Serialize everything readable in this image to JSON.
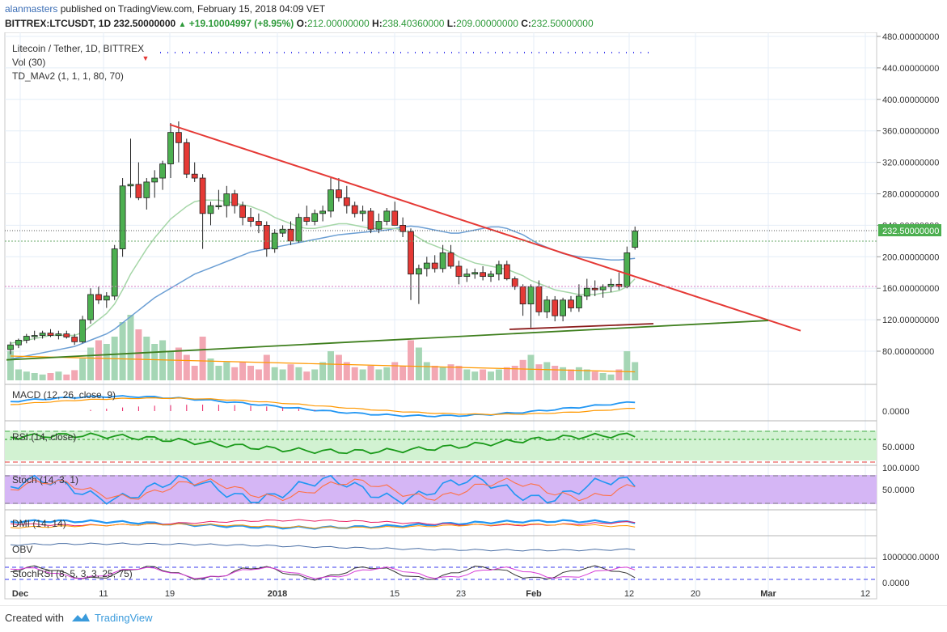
{
  "header": {
    "user": "alanmasters",
    "published": "published on TradingView.com, February 15, 2018 04:09 VET",
    "symbol": "BITTREX:LTCUSDT, 1D",
    "last": "232.50000000",
    "change": "+19.10004997 (+8.95%)",
    "o_label": "O:",
    "o": "212.00000000",
    "h_label": "H:",
    "h": "238.40360000",
    "l_label": "L:",
    "l": "209.00000000",
    "c_label": "C:",
    "c": "232.50000000"
  },
  "legend": {
    "title": "Litecoin / Tether, 1D, BITTREX",
    "vol": "Vol (30)",
    "td": "TD_MAv2 (1, 1, 1, 80, 70)"
  },
  "panes": {
    "macd": "MACD (12, 26, close, 9)",
    "rsi": "RSI (14, close)",
    "stoch": "Stoch (14, 3, 1)",
    "dmi": "DMI (14, 14)",
    "obv": "OBV",
    "stochrsi": "StochRSI (8, 5, 3, 3, 25, 75)"
  },
  "pane_axes": {
    "macd": "0.0000",
    "rsi": "50.0000",
    "stoch_top": "100.0000",
    "stoch_mid": "50.0000",
    "obv": "1000000.0000",
    "stochrsi": "0.0000"
  },
  "footer": {
    "created": "Created with",
    "brand": "TradingView"
  },
  "colors": {
    "up": "#4caf50",
    "down": "#e53935",
    "trendline": "#e53935",
    "support": "#3f7f1e",
    "ma_blue": "#6c9fd4",
    "ma_green": "#a5d6a7",
    "macd": "#2196f3",
    "signal": "#ff9800",
    "rsi": "#1a9a1a",
    "stoch_bg": "#d5b6f5",
    "rsi_bg": "#d2f2d2"
  },
  "chart_data": {
    "type": "candlestick",
    "title": "Litecoin / Tether, 1D, BITTREX",
    "price_ticks": [
      "480.00000000",
      "440.00000000",
      "400.00000000",
      "360.00000000",
      "320.00000000",
      "280.00000000",
      "240.00000000",
      "200.00000000",
      "160.00000000",
      "120.00000000",
      "80.00000000"
    ],
    "last_price_label": "232.50000000",
    "x_ticks": [
      "Dec",
      "11",
      "19",
      "2018",
      "15",
      "23",
      "Feb",
      "12",
      "20",
      "Mar",
      "12"
    ],
    "ylim": [
      40,
      490
    ],
    "candles": [
      {
        "o": 82,
        "h": 92,
        "l": 76,
        "c": 88
      },
      {
        "o": 88,
        "h": 96,
        "l": 84,
        "c": 94
      },
      {
        "o": 94,
        "h": 102,
        "l": 90,
        "c": 99
      },
      {
        "o": 99,
        "h": 106,
        "l": 94,
        "c": 100
      },
      {
        "o": 100,
        "h": 106,
        "l": 96,
        "c": 103
      },
      {
        "o": 103,
        "h": 108,
        "l": 98,
        "c": 100
      },
      {
        "o": 100,
        "h": 106,
        "l": 95,
        "c": 102
      },
      {
        "o": 102,
        "h": 106,
        "l": 96,
        "c": 98
      },
      {
        "o": 98,
        "h": 102,
        "l": 88,
        "c": 92
      },
      {
        "o": 92,
        "h": 125,
        "l": 90,
        "c": 120
      },
      {
        "o": 120,
        "h": 160,
        "l": 115,
        "c": 152
      },
      {
        "o": 152,
        "h": 162,
        "l": 140,
        "c": 145
      },
      {
        "o": 145,
        "h": 155,
        "l": 135,
        "c": 150
      },
      {
        "o": 150,
        "h": 215,
        "l": 145,
        "c": 210
      },
      {
        "o": 210,
        "h": 300,
        "l": 200,
        "c": 290
      },
      {
        "o": 290,
        "h": 350,
        "l": 275,
        "c": 292
      },
      {
        "o": 292,
        "h": 320,
        "l": 272,
        "c": 275
      },
      {
        "o": 275,
        "h": 300,
        "l": 260,
        "c": 295
      },
      {
        "o": 295,
        "h": 310,
        "l": 275,
        "c": 300
      },
      {
        "o": 300,
        "h": 322,
        "l": 285,
        "c": 318
      },
      {
        "o": 318,
        "h": 370,
        "l": 300,
        "c": 358
      },
      {
        "o": 358,
        "h": 372,
        "l": 320,
        "c": 345
      },
      {
        "o": 345,
        "h": 350,
        "l": 300,
        "c": 305
      },
      {
        "o": 305,
        "h": 320,
        "l": 295,
        "c": 300
      },
      {
        "o": 300,
        "h": 305,
        "l": 210,
        "c": 255
      },
      {
        "o": 255,
        "h": 270,
        "l": 240,
        "c": 265
      },
      {
        "o": 265,
        "h": 285,
        "l": 260,
        "c": 265
      },
      {
        "o": 265,
        "h": 290,
        "l": 250,
        "c": 280
      },
      {
        "o": 280,
        "h": 285,
        "l": 255,
        "c": 265
      },
      {
        "o": 265,
        "h": 270,
        "l": 240,
        "c": 250
      },
      {
        "o": 250,
        "h": 262,
        "l": 238,
        "c": 245
      },
      {
        "o": 245,
        "h": 255,
        "l": 230,
        "c": 240
      },
      {
        "o": 240,
        "h": 245,
        "l": 200,
        "c": 210
      },
      {
        "o": 210,
        "h": 235,
        "l": 205,
        "c": 230
      },
      {
        "o": 230,
        "h": 240,
        "l": 225,
        "c": 235
      },
      {
        "o": 235,
        "h": 245,
        "l": 215,
        "c": 220
      },
      {
        "o": 220,
        "h": 255,
        "l": 218,
        "c": 250
      },
      {
        "o": 250,
        "h": 265,
        "l": 240,
        "c": 245
      },
      {
        "o": 245,
        "h": 260,
        "l": 240,
        "c": 255
      },
      {
        "o": 255,
        "h": 265,
        "l": 245,
        "c": 258
      },
      {
        "o": 258,
        "h": 300,
        "l": 250,
        "c": 285
      },
      {
        "o": 285,
        "h": 300,
        "l": 270,
        "c": 275
      },
      {
        "o": 275,
        "h": 290,
        "l": 255,
        "c": 265
      },
      {
        "o": 265,
        "h": 270,
        "l": 250,
        "c": 255
      },
      {
        "o": 255,
        "h": 265,
        "l": 245,
        "c": 258
      },
      {
        "o": 258,
        "h": 262,
        "l": 230,
        "c": 235
      },
      {
        "o": 235,
        "h": 255,
        "l": 230,
        "c": 245
      },
      {
        "o": 245,
        "h": 262,
        "l": 240,
        "c": 258
      },
      {
        "o": 258,
        "h": 270,
        "l": 240,
        "c": 240
      },
      {
        "o": 240,
        "h": 250,
        "l": 225,
        "c": 232
      },
      {
        "o": 232,
        "h": 236,
        "l": 145,
        "c": 178
      },
      {
        "o": 178,
        "h": 190,
        "l": 140,
        "c": 185
      },
      {
        "o": 185,
        "h": 200,
        "l": 175,
        "c": 192
      },
      {
        "o": 192,
        "h": 202,
        "l": 180,
        "c": 185
      },
      {
        "o": 185,
        "h": 215,
        "l": 180,
        "c": 205
      },
      {
        "o": 205,
        "h": 215,
        "l": 185,
        "c": 188
      },
      {
        "o": 188,
        "h": 195,
        "l": 165,
        "c": 175
      },
      {
        "o": 175,
        "h": 185,
        "l": 168,
        "c": 178
      },
      {
        "o": 178,
        "h": 185,
        "l": 172,
        "c": 180
      },
      {
        "o": 180,
        "h": 188,
        "l": 170,
        "c": 175
      },
      {
        "o": 175,
        "h": 182,
        "l": 168,
        "c": 178
      },
      {
        "o": 178,
        "h": 195,
        "l": 170,
        "c": 190
      },
      {
        "o": 190,
        "h": 195,
        "l": 170,
        "c": 172
      },
      {
        "o": 172,
        "h": 175,
        "l": 158,
        "c": 162
      },
      {
        "o": 162,
        "h": 165,
        "l": 125,
        "c": 140
      },
      {
        "o": 140,
        "h": 165,
        "l": 110,
        "c": 162
      },
      {
        "o": 162,
        "h": 170,
        "l": 125,
        "c": 130
      },
      {
        "o": 130,
        "h": 150,
        "l": 122,
        "c": 145
      },
      {
        "o": 145,
        "h": 150,
        "l": 118,
        "c": 125
      },
      {
        "o": 125,
        "h": 148,
        "l": 118,
        "c": 145
      },
      {
        "o": 145,
        "h": 150,
        "l": 130,
        "c": 135
      },
      {
        "o": 135,
        "h": 165,
        "l": 130,
        "c": 150
      },
      {
        "o": 150,
        "h": 172,
        "l": 145,
        "c": 160
      },
      {
        "o": 160,
        "h": 170,
        "l": 150,
        "c": 158
      },
      {
        "o": 158,
        "h": 165,
        "l": 148,
        "c": 162
      },
      {
        "o": 162,
        "h": 172,
        "l": 155,
        "c": 165
      },
      {
        "o": 165,
        "h": 180,
        "l": 158,
        "c": 162
      },
      {
        "o": 162,
        "h": 213,
        "l": 160,
        "c": 205
      },
      {
        "o": 212,
        "h": 238.4,
        "l": 209,
        "c": 232.5
      }
    ],
    "volume": [
      40,
      15,
      12,
      10,
      8,
      10,
      12,
      8,
      14,
      30,
      45,
      55,
      50,
      60,
      80,
      90,
      70,
      60,
      50,
      55,
      40,
      45,
      35,
      20,
      60,
      30,
      20,
      25,
      18,
      25,
      20,
      15,
      35,
      18,
      15,
      22,
      18,
      12,
      15,
      25,
      40,
      35,
      25,
      18,
      15,
      20,
      15,
      18,
      25,
      20,
      55,
      45,
      25,
      20,
      18,
      22,
      20,
      15,
      12,
      15,
      12,
      15,
      18,
      20,
      28,
      35,
      22,
      25,
      20,
      18,
      15,
      18,
      15,
      12,
      10,
      8,
      15,
      40,
      25
    ],
    "series": [
      {
        "name": "MA (blue)",
        "values": [
          70,
          72,
          74,
          76,
          78,
          80,
          82,
          84,
          86,
          90,
          94,
          98,
          102,
          108,
          116,
          124,
          132,
          140,
          148,
          154,
          160,
          166,
          172,
          178,
          182,
          186,
          190,
          194,
          198,
          202,
          206,
          208,
          210,
          212,
          214,
          216,
          218,
          220,
          222,
          224,
          226,
          228,
          229,
          230,
          231,
          232,
          233,
          234,
          236,
          238,
          239,
          238,
          236,
          234,
          232,
          230,
          230,
          232,
          234,
          236,
          238,
          238,
          236,
          232,
          228,
          222,
          216,
          212,
          208,
          204,
          202,
          200,
          199,
          198,
          197,
          196,
          196,
          197,
          198
        ]
      },
      {
        "name": "MA (green)",
        "values": [
          90,
          92,
          94,
          96,
          98,
          100,
          100,
          100,
          100,
          104,
          112,
          120,
          128,
          140,
          158,
          178,
          194,
          210,
          224,
          236,
          248,
          256,
          264,
          270,
          272,
          272,
          272,
          270,
          268,
          266,
          264,
          260,
          256,
          250,
          246,
          242,
          238,
          236,
          236,
          238,
          240,
          242,
          242,
          240,
          238,
          236,
          236,
          236,
          236,
          234,
          230,
          224,
          218,
          214,
          210,
          206,
          200,
          196,
          192,
          190,
          188,
          186,
          184,
          180,
          176,
          170,
          166,
          162,
          158,
          156,
          154,
          152,
          152,
          152,
          154,
          155,
          157,
          162,
          172
        ]
      },
      {
        "name": "Resistance",
        "values": []
      }
    ],
    "trendlines": [
      {
        "name": "Descending resistance",
        "from": {
          "i": 20,
          "price": 368
        },
        "to": {
          "i": 88,
          "price": 106
        }
      },
      {
        "name": "Ascending support",
        "from": {
          "i": 0,
          "price": 69
        },
        "to": {
          "i": 82,
          "price": 119
        }
      }
    ]
  }
}
